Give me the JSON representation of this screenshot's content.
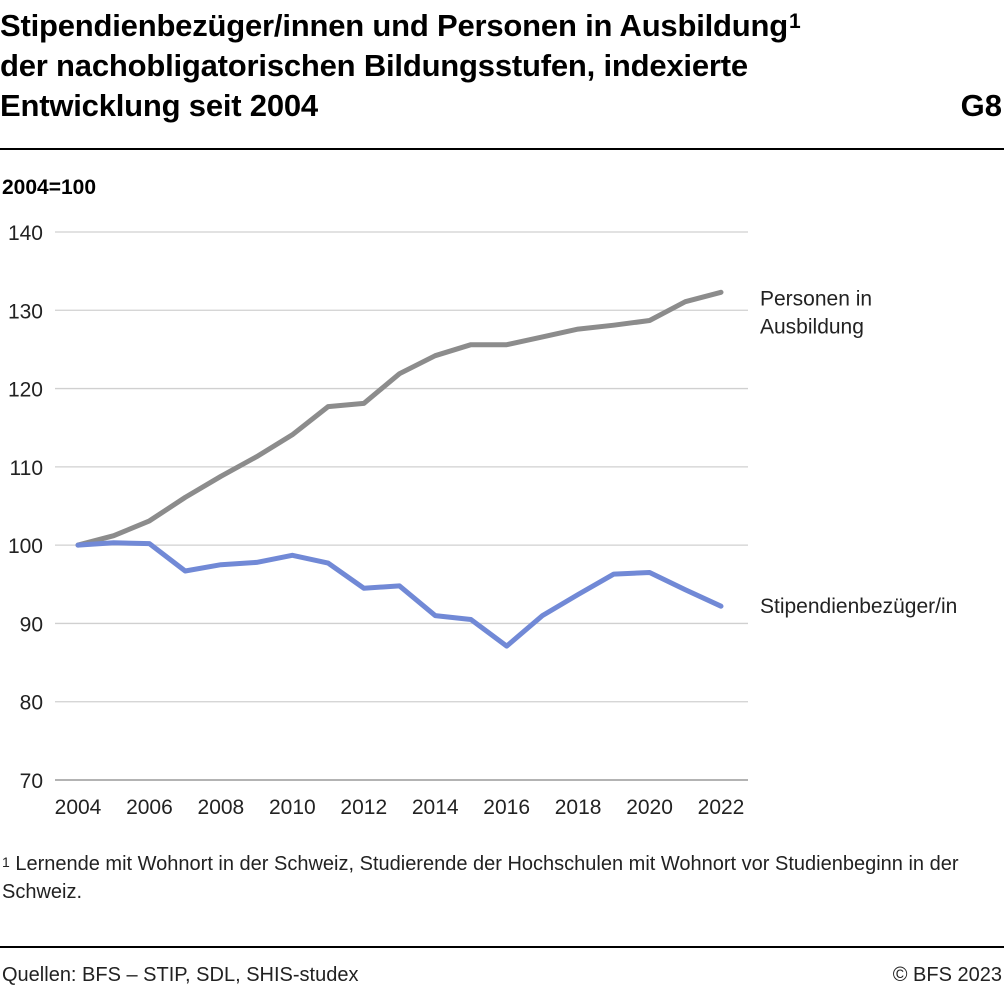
{
  "header": {
    "title_line1": "Stipendienbezüger/innen und Personen in Ausbildung",
    "title_sup": "1",
    "title_line2": "der nachobligatorischen Bildungsstufen, indexierte",
    "title_line3": "Entwicklung seit 2004",
    "graphic_number": "G8"
  },
  "chart_data": {
    "type": "line",
    "ylabel": "2004=100",
    "ylim": [
      70,
      140
    ],
    "yticks": [
      70,
      80,
      90,
      100,
      110,
      120,
      130,
      140
    ],
    "xlim": [
      2004,
      2022
    ],
    "xticks": [
      2004,
      2006,
      2008,
      2010,
      2012,
      2014,
      2016,
      2018,
      2020,
      2022
    ],
    "grid": true,
    "x": [
      2004,
      2005,
      2006,
      2007,
      2008,
      2009,
      2010,
      2011,
      2012,
      2013,
      2014,
      2015,
      2016,
      2017,
      2018,
      2019,
      2020,
      2021,
      2022
    ],
    "series": [
      {
        "name": "Personen in Ausbildung",
        "label_lines": [
          "Personen in",
          "Ausbildung"
        ],
        "color": "#8c8c8c",
        "values": [
          100,
          101.2,
          103.1,
          106.1,
          108.8,
          111.3,
          114.1,
          117.7,
          118.1,
          121.9,
          124.2,
          125.6,
          125.6,
          126.6,
          127.6,
          128.1,
          128.7,
          131.1,
          132.3
        ]
      },
      {
        "name": "Stipendienbezüger/in",
        "label_lines": [
          "Stipendienbezüger/in"
        ],
        "color": "#7189d6",
        "values": [
          100,
          100.3,
          100.2,
          96.7,
          97.5,
          97.8,
          98.7,
          97.7,
          94.5,
          94.8,
          91.0,
          90.5,
          87.1,
          91.0,
          93.7,
          96.3,
          96.5,
          94.3,
          92.2
        ]
      }
    ]
  },
  "footnote": {
    "marker": "1",
    "text": " Lernende mit Wohnort in der Schweiz, Studierende der Hochschulen mit Wohnort vor Studienbeginn in der Schweiz."
  },
  "footer": {
    "source": "Quellen: BFS – STIP, SDL, SHIS-studex",
    "copyright": "© BFS 2023"
  }
}
